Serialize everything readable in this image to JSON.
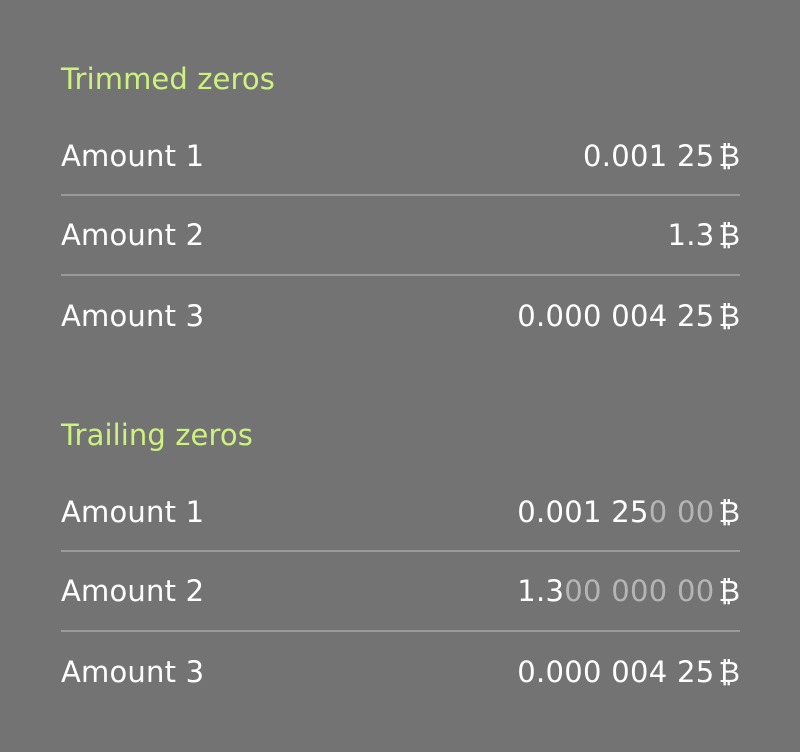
{
  "sections": [
    {
      "title": "Trimmed zeros",
      "rows": [
        {
          "label": "Amount 1",
          "value": "0.001 25",
          "trailing": "",
          "currency": "₿"
        },
        {
          "label": "Amount 2",
          "value": "1.3",
          "trailing": "",
          "currency": "₿"
        },
        {
          "label": "Amount 3",
          "value": "0.000 004 25",
          "trailing": "",
          "currency": "₿"
        }
      ]
    },
    {
      "title": "Trailing zeros",
      "rows": [
        {
          "label": "Amount 1",
          "value": "0.001 25",
          "trailing": "0 00",
          "currency": "₿"
        },
        {
          "label": "Amount 2",
          "value": "1.3",
          "trailing": "00 000 00",
          "currency": "₿"
        },
        {
          "label": "Amount 3",
          "value": "0.000 004 25",
          "trailing": "",
          "currency": "₿"
        }
      ]
    }
  ],
  "colors": {
    "background": "#737373",
    "section_title": "#cdf27e",
    "text": "#ffffff",
    "trailing_zeros": "#b5b5b5",
    "divider": "#9a9a9a"
  }
}
